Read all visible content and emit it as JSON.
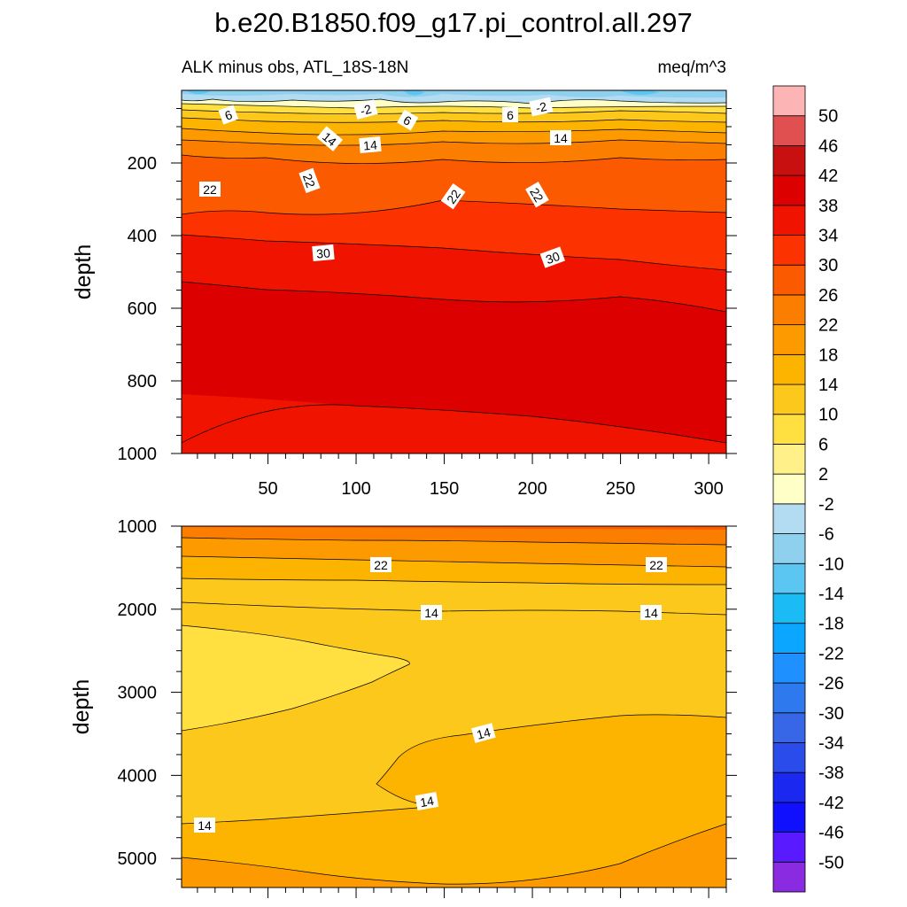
{
  "title": "b.e20.B1850.f09_g17.pi_control.all.297",
  "subtitle_left": "ALK minus obs, ATL_18S-18N",
  "subtitle_right": "meq/m^3",
  "colors": {
    "levels": [
      "#8a2be2",
      "#5a1aff",
      "#1010ff",
      "#1a28f0",
      "#2a4cea",
      "#3766e6",
      "#2f79ee",
      "#1e90ff",
      "#0aa6ff",
      "#1bbcf6",
      "#5cc6f2",
      "#8fd0ee",
      "#b3dcf2",
      "#ffffc8",
      "#fff08a",
      "#ffe040",
      "#fcc81c",
      "#fcb400",
      "#fc9a00",
      "#fc7e00",
      "#fc5a00",
      "#fc3200",
      "#f01400",
      "#dc0000",
      "#c81010",
      "#e05050",
      "#fcb4b4"
    ]
  },
  "colorbar_labels": [
    "50",
    "46",
    "42",
    "38",
    "34",
    "30",
    "26",
    "22",
    "18",
    "14",
    "10",
    "6",
    "2",
    "-2",
    "-6",
    "-10",
    "-14",
    "-18",
    "-22",
    "-26",
    "-30",
    "-34",
    "-38",
    "-42",
    "-46",
    "-50"
  ],
  "chart_data": [
    {
      "type": "contour",
      "title": "b.e20.B1850.f09_g17.pi_control.all.297",
      "subtitle_left": "ALK minus obs, ATL_18S-18N",
      "subtitle_right": "meq/m^3",
      "ylabel": "depth",
      "xlim": [
        1,
        310
      ],
      "ylim": [
        1000,
        0
      ],
      "x_ticks": [
        "50",
        "100",
        "150",
        "200",
        "250",
        "300"
      ],
      "y_ticks": [
        "200",
        "400",
        "600",
        "800",
        "1000"
      ],
      "contour_labels": [
        "6",
        "-2",
        "6",
        "6",
        "-2",
        "14",
        "14",
        "14",
        "22",
        "22",
        "22",
        "22",
        "30",
        "30"
      ],
      "bands": [
        {
          "range": "-6 to -2",
          "depth": [
            0,
            30
          ]
        },
        {
          "range": "2 to 10",
          "depth": [
            30,
            110
          ]
        },
        {
          "range": "10 to 18",
          "depth": [
            110,
            180
          ]
        },
        {
          "range": "18 to 22",
          "depth": [
            180,
            270
          ]
        },
        {
          "range": "22 to 26",
          "depth": [
            270,
            350
          ]
        },
        {
          "range": "26 to 30",
          "depth": [
            350,
            430
          ]
        },
        {
          "range": "30 to 34",
          "depth": [
            430,
            560
          ]
        },
        {
          "range": "34 to 38",
          "depth": [
            560,
            870
          ]
        },
        {
          "range": "30 to 34",
          "depth": [
            870,
            1000
          ]
        }
      ]
    },
    {
      "type": "contour",
      "ylabel": "depth",
      "xlim": [
        1,
        310
      ],
      "ylim": [
        5350,
        1000
      ],
      "y_ticks": [
        "1000",
        "2000",
        "3000",
        "4000",
        "5000"
      ],
      "contour_labels": [
        "22",
        "22",
        "14",
        "14",
        "14",
        "14",
        "14"
      ],
      "bands": [
        {
          "range": "26 to 30",
          "depth": [
            1000,
            1150
          ]
        },
        {
          "range": "22 to 26",
          "depth": [
            1150,
            1650
          ]
        },
        {
          "range": "18 to 22",
          "depth": [
            1650,
            1950
          ]
        },
        {
          "range": "14 to 18",
          "depth": [
            1950,
            2200
          ]
        },
        {
          "range": "10 to 14",
          "depth": [
            2200,
            3400
          ]
        },
        {
          "range": "6 to 10",
          "depth": [
            2200,
            3500
          ],
          "note": "wedge west of x≈130"
        },
        {
          "range": "14 to 18",
          "depth": [
            3300,
            4700
          ],
          "note": "tongue east of x≈115"
        },
        {
          "range": "18 to 22",
          "depth": [
            4900,
            5350
          ]
        }
      ]
    }
  ]
}
